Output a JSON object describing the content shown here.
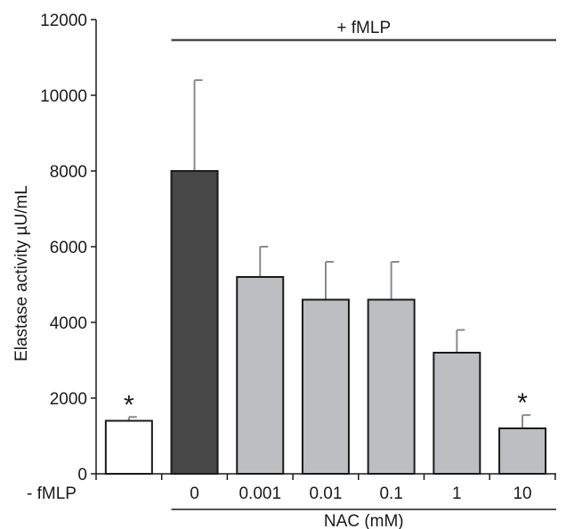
{
  "chart_data": {
    "type": "bar",
    "title": "",
    "xlabel": "NAC (mM)",
    "ylabel": "Elastase activity µU/mL",
    "ylim": [
      0,
      12000
    ],
    "yticks": [
      "0",
      "2000",
      "4000",
      "6000",
      "8000",
      "10000",
      "12000"
    ],
    "categories": [
      "- fMLP",
      "0",
      "0.001",
      "0.01",
      "0.1",
      "1",
      "10"
    ],
    "values": [
      1400,
      8000,
      5200,
      4600,
      4600,
      3200,
      1200
    ],
    "error_upper": [
      1500,
      10400,
      6000,
      5600,
      5600,
      3800,
      1550
    ],
    "bar_colors": [
      "#ffffff",
      "#474747",
      "#bdbec2",
      "#bdbec2",
      "#bdbec2",
      "#bdbec2",
      "#bdbec2"
    ],
    "significance": [
      "*",
      "",
      "",
      "",
      "",
      "",
      "*"
    ],
    "group_label": "+ fMLP",
    "grid": false,
    "legend": "none"
  }
}
